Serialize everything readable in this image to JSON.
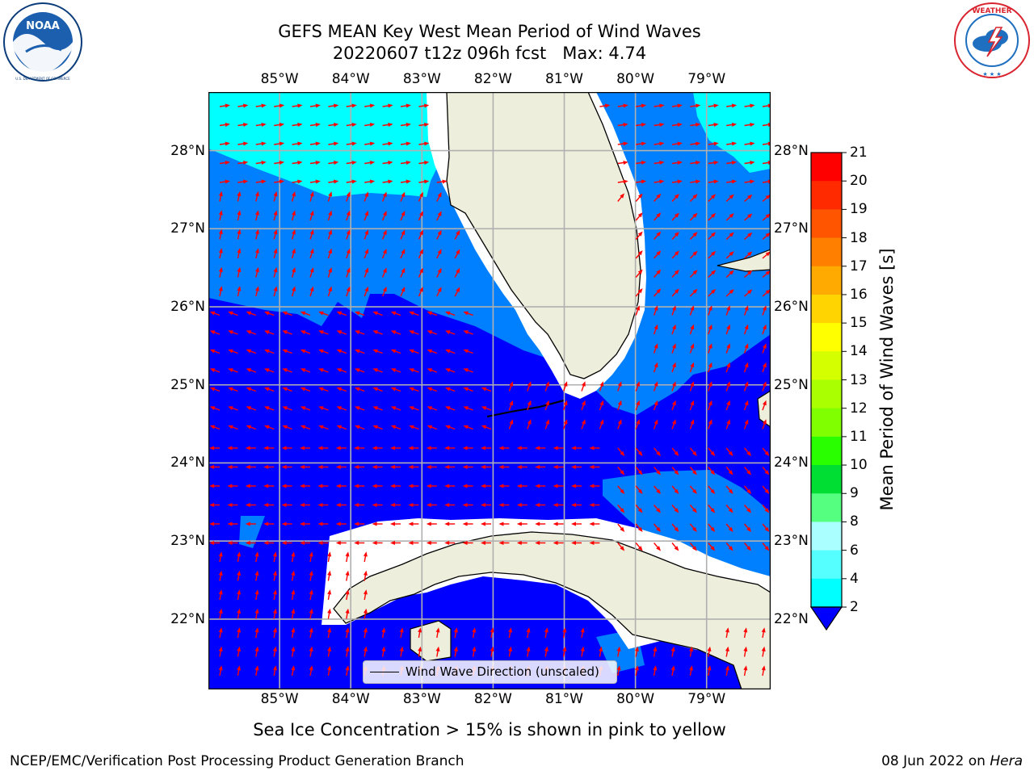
{
  "header": {
    "title_line1": "GEFS MEAN Key West Mean Period of Wind Waves",
    "title_line2": "20220607 t12z 096h fcst   Max: 4.74"
  },
  "logos": {
    "left": {
      "name": "NOAA",
      "ring_text": "NATIONAL OCEANIC AND ATMOSPHERIC ADMINISTRATION • U.S. DEPARTMENT OF COMMERCE",
      "colors": {
        "blue": "#1b5fae",
        "dark": "#0b3c7a"
      }
    },
    "right": {
      "name": "NATIONAL WEATHER SERVICE",
      "colors": {
        "red": "#d9232e",
        "blue": "#1f6fc1"
      }
    }
  },
  "map": {
    "lon_ticks": [
      "85°W",
      "84°W",
      "83°W",
      "82°W",
      "81°W",
      "80°W",
      "79°W"
    ],
    "lat_ticks": [
      "28°N",
      "27°N",
      "26°N",
      "25°N",
      "24°N",
      "23°N",
      "22°N"
    ],
    "lon_range": [
      -86,
      -78.1
    ],
    "lat_range": [
      21.1,
      28.75
    ],
    "colors": {
      "land": "#eeeedc",
      "band_2_4": "#0000ff",
      "band_4_6": "#0080ff",
      "band_6_8": "#00ffff",
      "arrows": "#ff0000",
      "grid": "#b0b0b0",
      "coast": "#000000",
      "nodata": "#ffffff"
    },
    "legend_label": "Wind Wave Direction (unscaled)"
  },
  "colorbar": {
    "label": "Mean Period of Wind Waves [s]",
    "ticks": [
      "21",
      "20",
      "19",
      "18",
      "17",
      "16",
      "15",
      "14",
      "13",
      "12",
      "11",
      "10",
      "9",
      "8",
      "6",
      "4",
      "2"
    ],
    "colors_top_to_bottom": [
      "#ff0000",
      "#ff2a00",
      "#ff5500",
      "#ff8000",
      "#ffaa00",
      "#ffd400",
      "#ffff00",
      "#d4ff00",
      "#aaff00",
      "#80ff00",
      "#2aff00",
      "#00dd33",
      "#55ff80",
      "#aaffff",
      "#55ffff",
      "#00ffff",
      "#00ccff",
      "#0080ff"
    ],
    "under_color": "#0000ff"
  },
  "note": "Sea Ice Concentration > 15% is shown in pink to yellow",
  "footer": {
    "left": "NCEP/EMC/Verification Post Processing Product Generation Branch",
    "right_prefix": "08 Jun 2022 on ",
    "right_host": "Hera"
  }
}
